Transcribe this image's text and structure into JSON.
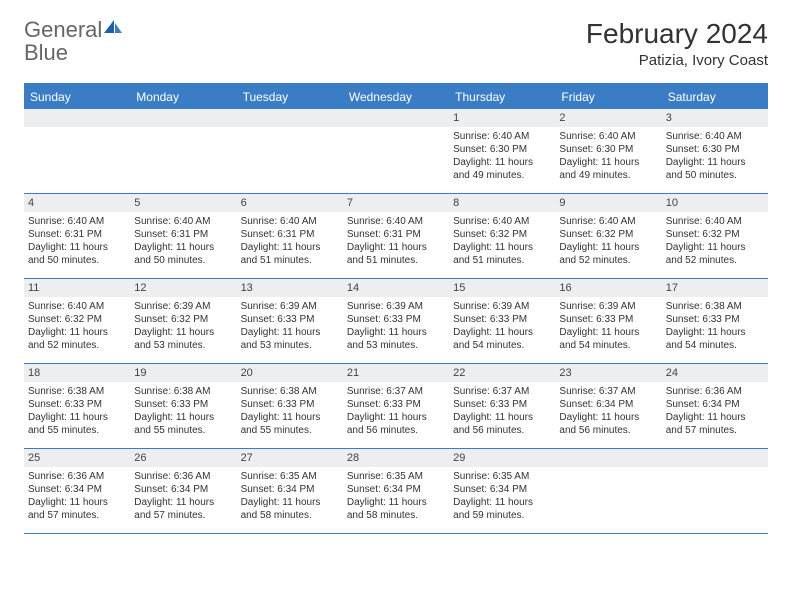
{
  "brand": {
    "word1": "General",
    "word2": "Blue"
  },
  "title": "February 2024",
  "location": "Patizia, Ivory Coast",
  "colors": {
    "accent": "#3b7dc4",
    "header_bg": "#3b7dc4",
    "header_text": "#ffffff",
    "daynum_bg": "#eceeef",
    "border": "#3b7dc4",
    "text": "#333333",
    "logo_gray": "#666666"
  },
  "day_names": [
    "Sunday",
    "Monday",
    "Tuesday",
    "Wednesday",
    "Thursday",
    "Friday",
    "Saturday"
  ],
  "weeks": [
    [
      null,
      null,
      null,
      null,
      {
        "num": "1",
        "sunrise": "Sunrise: 6:40 AM",
        "sunset": "Sunset: 6:30 PM",
        "daylight": "Daylight: 11 hours and 49 minutes."
      },
      {
        "num": "2",
        "sunrise": "Sunrise: 6:40 AM",
        "sunset": "Sunset: 6:30 PM",
        "daylight": "Daylight: 11 hours and 49 minutes."
      },
      {
        "num": "3",
        "sunrise": "Sunrise: 6:40 AM",
        "sunset": "Sunset: 6:30 PM",
        "daylight": "Daylight: 11 hours and 50 minutes."
      }
    ],
    [
      {
        "num": "4",
        "sunrise": "Sunrise: 6:40 AM",
        "sunset": "Sunset: 6:31 PM",
        "daylight": "Daylight: 11 hours and 50 minutes."
      },
      {
        "num": "5",
        "sunrise": "Sunrise: 6:40 AM",
        "sunset": "Sunset: 6:31 PM",
        "daylight": "Daylight: 11 hours and 50 minutes."
      },
      {
        "num": "6",
        "sunrise": "Sunrise: 6:40 AM",
        "sunset": "Sunset: 6:31 PM",
        "daylight": "Daylight: 11 hours and 51 minutes."
      },
      {
        "num": "7",
        "sunrise": "Sunrise: 6:40 AM",
        "sunset": "Sunset: 6:31 PM",
        "daylight": "Daylight: 11 hours and 51 minutes."
      },
      {
        "num": "8",
        "sunrise": "Sunrise: 6:40 AM",
        "sunset": "Sunset: 6:32 PM",
        "daylight": "Daylight: 11 hours and 51 minutes."
      },
      {
        "num": "9",
        "sunrise": "Sunrise: 6:40 AM",
        "sunset": "Sunset: 6:32 PM",
        "daylight": "Daylight: 11 hours and 52 minutes."
      },
      {
        "num": "10",
        "sunrise": "Sunrise: 6:40 AM",
        "sunset": "Sunset: 6:32 PM",
        "daylight": "Daylight: 11 hours and 52 minutes."
      }
    ],
    [
      {
        "num": "11",
        "sunrise": "Sunrise: 6:40 AM",
        "sunset": "Sunset: 6:32 PM",
        "daylight": "Daylight: 11 hours and 52 minutes."
      },
      {
        "num": "12",
        "sunrise": "Sunrise: 6:39 AM",
        "sunset": "Sunset: 6:32 PM",
        "daylight": "Daylight: 11 hours and 53 minutes."
      },
      {
        "num": "13",
        "sunrise": "Sunrise: 6:39 AM",
        "sunset": "Sunset: 6:33 PM",
        "daylight": "Daylight: 11 hours and 53 minutes."
      },
      {
        "num": "14",
        "sunrise": "Sunrise: 6:39 AM",
        "sunset": "Sunset: 6:33 PM",
        "daylight": "Daylight: 11 hours and 53 minutes."
      },
      {
        "num": "15",
        "sunrise": "Sunrise: 6:39 AM",
        "sunset": "Sunset: 6:33 PM",
        "daylight": "Daylight: 11 hours and 54 minutes."
      },
      {
        "num": "16",
        "sunrise": "Sunrise: 6:39 AM",
        "sunset": "Sunset: 6:33 PM",
        "daylight": "Daylight: 11 hours and 54 minutes."
      },
      {
        "num": "17",
        "sunrise": "Sunrise: 6:38 AM",
        "sunset": "Sunset: 6:33 PM",
        "daylight": "Daylight: 11 hours and 54 minutes."
      }
    ],
    [
      {
        "num": "18",
        "sunrise": "Sunrise: 6:38 AM",
        "sunset": "Sunset: 6:33 PM",
        "daylight": "Daylight: 11 hours and 55 minutes."
      },
      {
        "num": "19",
        "sunrise": "Sunrise: 6:38 AM",
        "sunset": "Sunset: 6:33 PM",
        "daylight": "Daylight: 11 hours and 55 minutes."
      },
      {
        "num": "20",
        "sunrise": "Sunrise: 6:38 AM",
        "sunset": "Sunset: 6:33 PM",
        "daylight": "Daylight: 11 hours and 55 minutes."
      },
      {
        "num": "21",
        "sunrise": "Sunrise: 6:37 AM",
        "sunset": "Sunset: 6:33 PM",
        "daylight": "Daylight: 11 hours and 56 minutes."
      },
      {
        "num": "22",
        "sunrise": "Sunrise: 6:37 AM",
        "sunset": "Sunset: 6:33 PM",
        "daylight": "Daylight: 11 hours and 56 minutes."
      },
      {
        "num": "23",
        "sunrise": "Sunrise: 6:37 AM",
        "sunset": "Sunset: 6:34 PM",
        "daylight": "Daylight: 11 hours and 56 minutes."
      },
      {
        "num": "24",
        "sunrise": "Sunrise: 6:36 AM",
        "sunset": "Sunset: 6:34 PM",
        "daylight": "Daylight: 11 hours and 57 minutes."
      }
    ],
    [
      {
        "num": "25",
        "sunrise": "Sunrise: 6:36 AM",
        "sunset": "Sunset: 6:34 PM",
        "daylight": "Daylight: 11 hours and 57 minutes."
      },
      {
        "num": "26",
        "sunrise": "Sunrise: 6:36 AM",
        "sunset": "Sunset: 6:34 PM",
        "daylight": "Daylight: 11 hours and 57 minutes."
      },
      {
        "num": "27",
        "sunrise": "Sunrise: 6:35 AM",
        "sunset": "Sunset: 6:34 PM",
        "daylight": "Daylight: 11 hours and 58 minutes."
      },
      {
        "num": "28",
        "sunrise": "Sunrise: 6:35 AM",
        "sunset": "Sunset: 6:34 PM",
        "daylight": "Daylight: 11 hours and 58 minutes."
      },
      {
        "num": "29",
        "sunrise": "Sunrise: 6:35 AM",
        "sunset": "Sunset: 6:34 PM",
        "daylight": "Daylight: 11 hours and 59 minutes."
      },
      null,
      null
    ]
  ]
}
